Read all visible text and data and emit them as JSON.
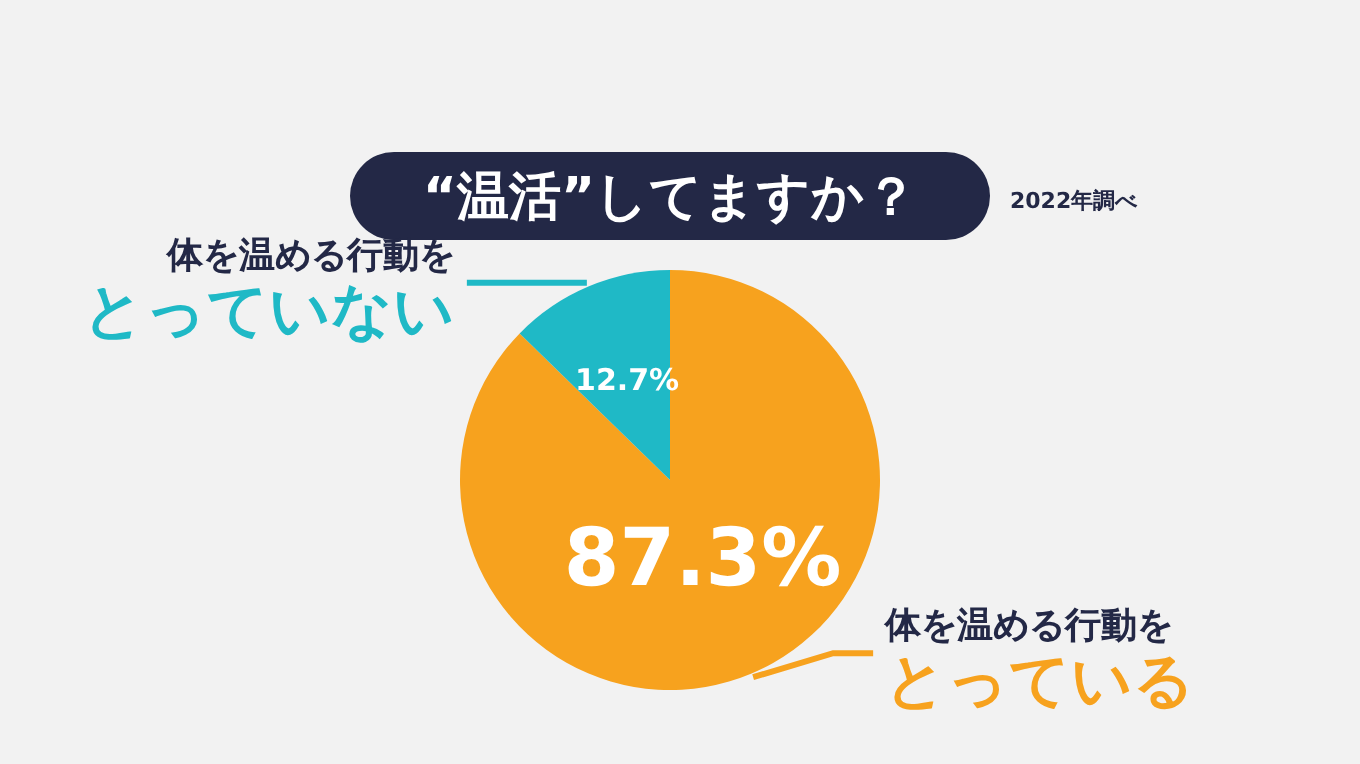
{
  "chart_data": {
    "type": "pie",
    "title": "“温活”してますか？",
    "annotations": [
      "2022年調べ"
    ],
    "categories": [
      "体を温める行動をとっている",
      "体を温める行動をとっていない"
    ],
    "values": [
      87.3,
      12.7
    ],
    "colors": [
      "#f7a21e",
      "#1fb9c6"
    ],
    "value_labels": [
      "87.3%",
      "12.7%"
    ]
  }
}
